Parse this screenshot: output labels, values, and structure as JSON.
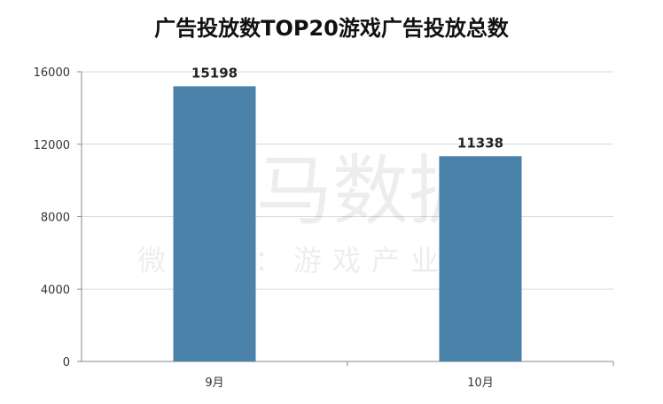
{
  "chart_data": {
    "type": "bar",
    "title": "广告投放数TOP20游戏广告投放总数",
    "categories": [
      "9月",
      "10月"
    ],
    "values": [
      15198,
      11338
    ],
    "data_labels": [
      "15198",
      "11338"
    ],
    "ylim": [
      0,
      16000
    ],
    "yticks": [
      0,
      4000,
      8000,
      12000,
      16000
    ],
    "grid": true,
    "bar_color": "#4a82aa",
    "xlabel": "",
    "ylabel": ""
  },
  "watermark": {
    "main": "伽马数据",
    "sub": "微信号：游戏产业报告"
  }
}
